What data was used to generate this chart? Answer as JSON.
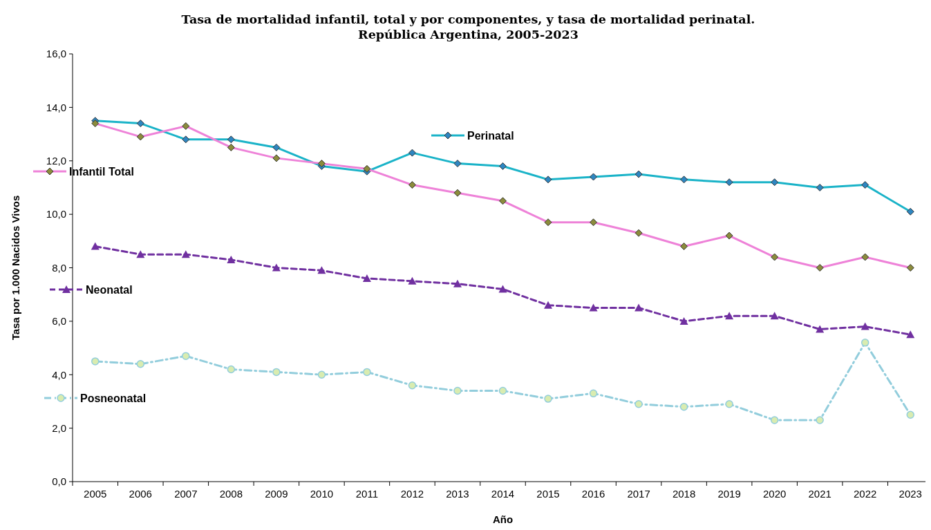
{
  "chart_data": {
    "type": "line",
    "title": "Tasa de mortalidad infantil, total y por componentes, y tasa de mortalidad perinatal. República Argentina, 2005-2023",
    "xlabel": "Año",
    "ylabel": "Tasa por 1.000 Nacidos Vivos",
    "categories": [
      "2005",
      "2006",
      "2007",
      "2008",
      "2009",
      "2010",
      "2011",
      "2012",
      "2013",
      "2014",
      "2015",
      "2016",
      "2017",
      "2018",
      "2019",
      "2020",
      "2021",
      "2022",
      "2023"
    ],
    "ylim": [
      0,
      16
    ],
    "yticks": [
      {
        "value": 0,
        "label": "0,0"
      },
      {
        "value": 2,
        "label": "2,0"
      },
      {
        "value": 4,
        "label": "4,0"
      },
      {
        "value": 6,
        "label": "6,0"
      },
      {
        "value": 8,
        "label": "8,0"
      },
      {
        "value": 10,
        "label": "10,0"
      },
      {
        "value": 12,
        "label": "12,0"
      },
      {
        "value": 14,
        "label": "14,0"
      },
      {
        "value": 16,
        "label": "16,0"
      }
    ],
    "grid": false,
    "legend": "left",
    "series": [
      {
        "name": "Perinatal",
        "color": "#1ab3c8",
        "marker": "diamond",
        "line_style": "solid",
        "values": [
          13.5,
          13.4,
          12.8,
          12.8,
          12.5,
          11.8,
          11.6,
          12.3,
          11.9,
          11.8,
          11.3,
          11.4,
          11.5,
          11.3,
          11.2,
          11.2,
          11.0,
          11.1,
          10.1
        ]
      },
      {
        "name": "Infantil Total",
        "color": "#ee82d8",
        "marker": "diamond",
        "line_style": "solid",
        "values": [
          13.4,
          12.9,
          13.3,
          12.5,
          12.1,
          11.9,
          11.7,
          11.1,
          10.8,
          10.5,
          9.7,
          9.7,
          9.3,
          8.8,
          9.2,
          8.4,
          8.0,
          8.4,
          8.0
        ]
      },
      {
        "name": "Neonatal",
        "color": "#7030a0",
        "marker": "triangle",
        "line_style": "dashed",
        "values": [
          8.8,
          8.5,
          8.5,
          8.3,
          8.0,
          7.9,
          7.6,
          7.5,
          7.4,
          7.2,
          6.6,
          6.5,
          6.5,
          6.0,
          6.2,
          6.2,
          5.7,
          5.8,
          5.5
        ]
      },
      {
        "name": "Posneonatal",
        "color": "#92cddc",
        "marker": "circle",
        "line_style": "dotted",
        "values": [
          4.5,
          4.4,
          4.7,
          4.2,
          4.1,
          4.0,
          4.1,
          3.6,
          3.4,
          3.4,
          3.1,
          3.3,
          2.9,
          2.8,
          2.9,
          2.3,
          2.3,
          5.2,
          2.5
        ]
      }
    ]
  }
}
